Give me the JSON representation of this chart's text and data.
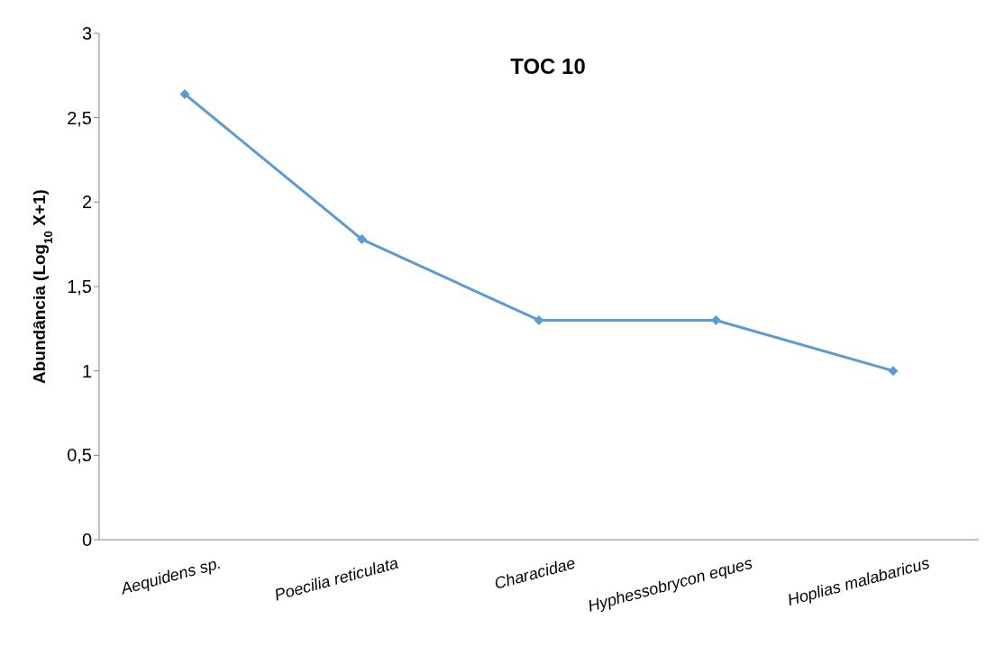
{
  "chart_data": {
    "type": "line",
    "title": "TOC 10",
    "ylabel": "Abundância (Log$_{10}$ X+1)",
    "categories": [
      "Aequidens sp.",
      "Poecilia reticulata",
      "Characidae",
      "Hyphessobrycon eques",
      "Hoplias malabaricus"
    ],
    "series": [
      {
        "color": "#5b9bd5",
        "values": [
          2.64,
          1.78,
          1.3,
          1.3,
          1.0
        ]
      }
    ],
    "ylim": [
      0,
      3
    ],
    "yticks": [
      0,
      {
        "value": 0.5,
        "label": "0,5"
      },
      1,
      {
        "value": 1.5,
        "label": "1,5"
      },
      2,
      {
        "value": 2.5,
        "label": "2,5"
      },
      3
    ],
    "marker": "diamond",
    "line_style": "solid"
  }
}
